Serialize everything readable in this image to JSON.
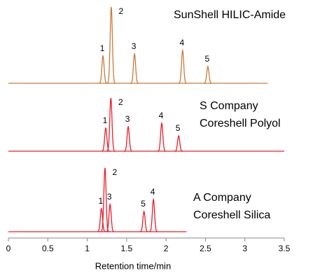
{
  "chart_data": {
    "type": "chromatogram",
    "xlabel": "Retention time/min",
    "xlim": [
      0,
      3.5
    ],
    "xticks": [
      0,
      0.5,
      1,
      1.5,
      2,
      2.5,
      3,
      3.5
    ],
    "series": [
      {
        "name": [
          "SunShell HILIC-Amide"
        ],
        "color": "#c87a3a",
        "x_range": [
          0,
          3.29
        ],
        "peaks": [
          {
            "label": "1",
            "x": 1.2,
            "height": 39
          },
          {
            "label": "2",
            "x": 1.305,
            "height": 109
          },
          {
            "label": "3",
            "x": 1.6,
            "height": 42
          },
          {
            "label": "4",
            "x": 2.21,
            "height": 47
          },
          {
            "label": "5",
            "x": 2.53,
            "height": 24
          }
        ]
      },
      {
        "name": [
          "S Company",
          "Coreshell Polyol"
        ],
        "color": "#e8202a",
        "x_range": [
          0,
          3.5
        ],
        "peaks": [
          {
            "label": "1",
            "x": 1.235,
            "height": 33
          },
          {
            "label": "2",
            "x": 1.3,
            "height": 76
          },
          {
            "label": "3",
            "x": 1.52,
            "height": 35
          },
          {
            "label": "4",
            "x": 1.945,
            "height": 40
          },
          {
            "label": "5",
            "x": 2.16,
            "height": 22
          }
        ]
      },
      {
        "name": [
          "A Company",
          "Coreshell Silica"
        ],
        "color": "#e8202a",
        "x_range": [
          0,
          2.26
        ],
        "peaks": [
          {
            "label": "1",
            "x": 1.18,
            "height": 33
          },
          {
            "label": "2",
            "x": 1.225,
            "height": 91
          },
          {
            "label": "3",
            "x": 1.29,
            "height": 39
          },
          {
            "label": "5",
            "x": 1.72,
            "height": 29
          },
          {
            "label": "4",
            "x": 1.84,
            "height": 46
          }
        ]
      }
    ]
  }
}
